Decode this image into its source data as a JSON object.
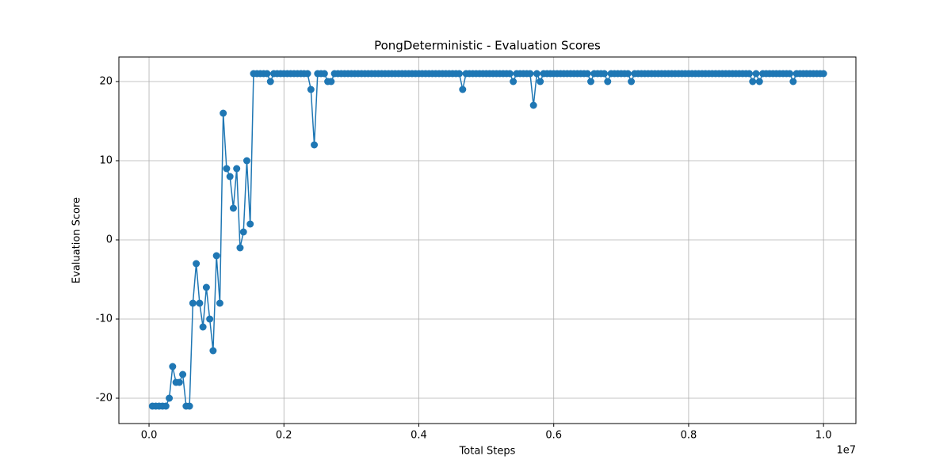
{
  "chart_data": {
    "type": "line",
    "title": "PongDeterministic - Evaluation Scores",
    "xlabel": "Total Steps",
    "ylabel": "Evaluation Score",
    "x_offset_label": "1e7",
    "grid": true,
    "xlim": [
      -447000,
      10480000
    ],
    "ylim": [
      -23.2,
      23.1
    ],
    "xticks": [
      {
        "value": 0,
        "label": "0.0"
      },
      {
        "value": 2000000,
        "label": "0.2"
      },
      {
        "value": 4000000,
        "label": "0.4"
      },
      {
        "value": 6000000,
        "label": "0.6"
      },
      {
        "value": 8000000,
        "label": "0.8"
      },
      {
        "value": 10000000,
        "label": "1.0"
      }
    ],
    "yticks": [
      -20,
      -10,
      0,
      10,
      20
    ],
    "x": [
      50000,
      100000,
      150000,
      200000,
      250000,
      300000,
      350000,
      400000,
      450000,
      500000,
      550000,
      600000,
      650000,
      700000,
      750000,
      800000,
      850000,
      900000,
      950000,
      1000000,
      1050000,
      1100000,
      1150000,
      1200000,
      1250000,
      1300000,
      1350000,
      1400000,
      1450000,
      1500000,
      1550000,
      1600000,
      1650000,
      1700000,
      1750000,
      1800000,
      1850000,
      1900000,
      1950000,
      2000000,
      2050000,
      2100000,
      2150000,
      2200000,
      2250000,
      2300000,
      2350000,
      2400000,
      2450000,
      2500000,
      2550000,
      2600000,
      2650000,
      2700000,
      2750000,
      2800000,
      2850000,
      2900000,
      2950000,
      3000000,
      3050000,
      3100000,
      3150000,
      3200000,
      3250000,
      3300000,
      3350000,
      3400000,
      3450000,
      3500000,
      3550000,
      3600000,
      3650000,
      3700000,
      3750000,
      3800000,
      3850000,
      3900000,
      3950000,
      4000000,
      4050000,
      4100000,
      4150000,
      4200000,
      4250000,
      4300000,
      4350000,
      4400000,
      4450000,
      4500000,
      4550000,
      4600000,
      4650000,
      4700000,
      4750000,
      4800000,
      4850000,
      4900000,
      4950000,
      5000000,
      5050000,
      5100000,
      5150000,
      5200000,
      5250000,
      5300000,
      5350000,
      5400000,
      5450000,
      5500000,
      5550000,
      5600000,
      5650000,
      5700000,
      5750000,
      5800000,
      5850000,
      5900000,
      5950000,
      6000000,
      6050000,
      6100000,
      6150000,
      6200000,
      6250000,
      6300000,
      6350000,
      6400000,
      6450000,
      6500000,
      6550000,
      6600000,
      6650000,
      6700000,
      6750000,
      6800000,
      6850000,
      6900000,
      6950000,
      7000000,
      7050000,
      7100000,
      7150000,
      7200000,
      7250000,
      7300000,
      7350000,
      7400000,
      7450000,
      7500000,
      7550000,
      7600000,
      7650000,
      7700000,
      7750000,
      7800000,
      7850000,
      7900000,
      7950000,
      8000000,
      8050000,
      8100000,
      8150000,
      8200000,
      8250000,
      8300000,
      8350000,
      8400000,
      8450000,
      8500000,
      8550000,
      8600000,
      8650000,
      8700000,
      8750000,
      8800000,
      8850000,
      8900000,
      8950000,
      9000000,
      9050000,
      9100000,
      9150000,
      9200000,
      9250000,
      9300000,
      9350000,
      9400000,
      9450000,
      9500000,
      9550000,
      9600000,
      9650000,
      9700000,
      9750000,
      9800000,
      9850000,
      9900000,
      9950000,
      10000000
    ],
    "series": [
      {
        "name": "Evaluation Score",
        "color": "#1f77b4",
        "values": [
          -21,
          -21,
          -21,
          -21,
          -21,
          -20,
          -16,
          -18,
          -18,
          -17,
          -21,
          -21,
          -8,
          -3,
          -8,
          -11,
          -6,
          -10,
          -14,
          -2,
          -8,
          16,
          9,
          8,
          4,
          9,
          -1,
          1,
          10,
          2,
          21,
          21,
          21,
          21,
          21,
          20,
          21,
          21,
          21,
          21,
          21,
          21,
          21,
          21,
          21,
          21,
          21,
          19,
          12,
          21,
          21,
          21,
          20,
          20,
          21,
          21,
          21,
          21,
          21,
          21,
          21,
          21,
          21,
          21,
          21,
          21,
          21,
          21,
          21,
          21,
          21,
          21,
          21,
          21,
          21,
          21,
          21,
          21,
          21,
          21,
          21,
          21,
          21,
          21,
          21,
          21,
          21,
          21,
          21,
          21,
          21,
          21,
          19,
          21,
          21,
          21,
          21,
          21,
          21,
          21,
          21,
          21,
          21,
          21,
          21,
          21,
          21,
          20,
          21,
          21,
          21,
          21,
          21,
          17,
          21,
          20,
          21,
          21,
          21,
          21,
          21,
          21,
          21,
          21,
          21,
          21,
          21,
          21,
          21,
          21,
          20,
          21,
          21,
          21,
          21,
          20,
          21,
          21,
          21,
          21,
          21,
          21,
          20,
          21,
          21,
          21,
          21,
          21,
          21,
          21,
          21,
          21,
          21,
          21,
          21,
          21,
          21,
          21,
          21,
          21,
          21,
          21,
          21,
          21,
          21,
          21,
          21,
          21,
          21,
          21,
          21,
          21,
          21,
          21,
          21,
          21,
          21,
          21,
          20,
          21,
          20,
          21,
          21,
          21,
          21,
          21,
          21,
          21,
          21,
          21,
          20,
          21,
          21,
          21,
          21,
          21,
          21,
          21,
          21,
          21
        ]
      }
    ]
  }
}
